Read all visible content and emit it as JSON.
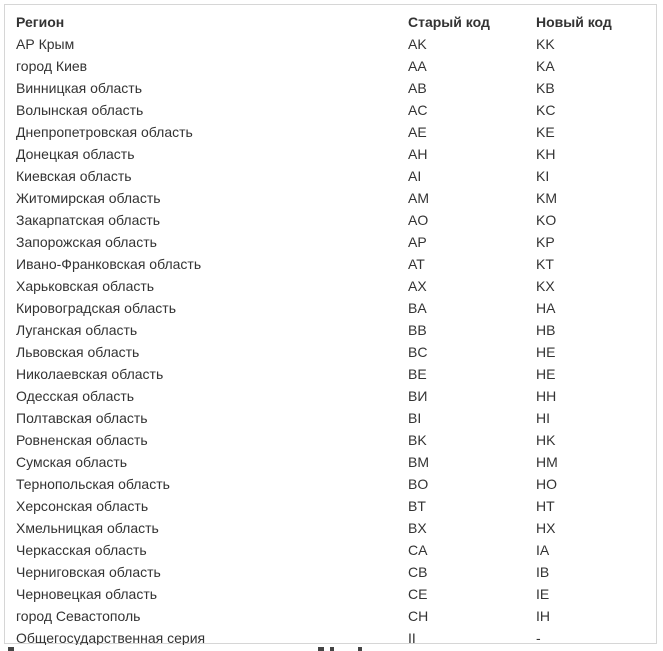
{
  "table": {
    "headers": {
      "region": "Регион",
      "old_code": "Старый код",
      "new_code": "Новый код"
    },
    "rows": [
      {
        "region": "АР Крым",
        "old_code": "AK",
        "new_code": "KK"
      },
      {
        "region": "город Киев",
        "old_code": "AA",
        "new_code": "KA"
      },
      {
        "region": "Винницкая область",
        "old_code": "AB",
        "new_code": "KB"
      },
      {
        "region": "Волынская область",
        "old_code": "AC",
        "new_code": "KC"
      },
      {
        "region": "Днепропетровская область",
        "old_code": "AE",
        "new_code": "KE"
      },
      {
        "region": "Донецкая область",
        "old_code": "AH",
        "new_code": "KH"
      },
      {
        "region": "Киевская область",
        "old_code": "AI",
        "new_code": "KI"
      },
      {
        "region": "Житомирская область",
        "old_code": "AM",
        "new_code": "KM"
      },
      {
        "region": "Закарпатская область",
        "old_code": "AO",
        "new_code": "KO"
      },
      {
        "region": "Запорожская область",
        "old_code": "AP",
        "new_code": "KP"
      },
      {
        "region": "Ивано-Франковская область",
        "old_code": "AT",
        "new_code": "KT"
      },
      {
        "region": "Харьковская область",
        "old_code": "AX",
        "new_code": "KX"
      },
      {
        "region": "Кировоградская область",
        "old_code": "BA",
        "new_code": "HA"
      },
      {
        "region": "Луганская область",
        "old_code": "BB",
        "new_code": "HB"
      },
      {
        "region": "Львовская область",
        "old_code": "BC",
        "new_code": "HE"
      },
      {
        "region": "Николаевская область",
        "old_code": "BE",
        "new_code": "HE"
      },
      {
        "region": "Одесская область",
        "old_code": "BИ",
        "new_code": "HH"
      },
      {
        "region": "Полтавская область",
        "old_code": "BI",
        "new_code": "HI"
      },
      {
        "region": "Ровненская область",
        "old_code": "BK",
        "new_code": "HK"
      },
      {
        "region": "Сумская область",
        "old_code": "BM",
        "new_code": "HM"
      },
      {
        "region": "Тернопольская область",
        "old_code": "BO",
        "new_code": "HO"
      },
      {
        "region": "Херсонская область",
        "old_code": "BT",
        "new_code": "HT"
      },
      {
        "region": "Хмельницкая область",
        "old_code": "BX",
        "new_code": "HX"
      },
      {
        "region": "Черкасская область",
        "old_code": "CA",
        "new_code": "IA"
      },
      {
        "region": "Черниговская область",
        "old_code": "CB",
        "new_code": "IB"
      },
      {
        "region": "Черновецкая область",
        "old_code": "CE",
        "new_code": "IE"
      },
      {
        "region": "город Севастополь",
        "old_code": "CH",
        "new_code": "IH"
      },
      {
        "region": "Общегосударственная серия",
        "old_code": "II",
        "new_code": "-"
      }
    ]
  }
}
